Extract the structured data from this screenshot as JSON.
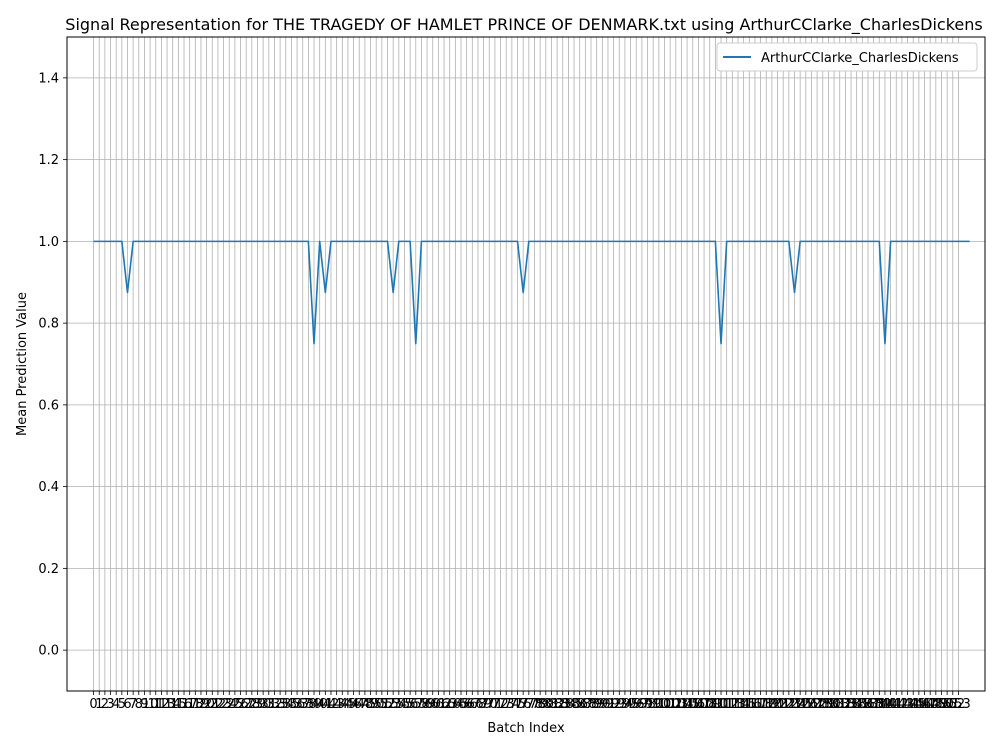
{
  "chart_data": {
    "type": "line",
    "title": "Signal Representation for THE TRAGEDY OF HAMLET PRINCE OF DENMARK.txt using ArthurCClarke_CharlesDickens",
    "xlabel": "Batch Index",
    "ylabel": "Mean Prediction Value",
    "xlim": [
      -4.7,
      157.7
    ],
    "ylim": [
      -0.1,
      1.5
    ],
    "yticks": [
      0.0,
      0.2,
      0.4,
      0.6,
      0.8,
      1.0,
      1.2,
      1.4
    ],
    "x_count": 154,
    "grid": true,
    "legend_position": "top-right",
    "series": [
      {
        "name": "ArthurCClarke_CharlesDickens",
        "color": "#1f77b4",
        "values": [
          1,
          1,
          1,
          1,
          1,
          1,
          0.875,
          1,
          1,
          1,
          1,
          1,
          1,
          1,
          1,
          1,
          1,
          1,
          1,
          1,
          1,
          1,
          1,
          1,
          1,
          1,
          1,
          1,
          1,
          1,
          1,
          1,
          1,
          1,
          1,
          1,
          1,
          1,
          1,
          0.75,
          1,
          0.875,
          1,
          1,
          1,
          1,
          1,
          1,
          1,
          1,
          1,
          1,
          1,
          0.875,
          1,
          1,
          1,
          0.75,
          1,
          1,
          1,
          1,
          1,
          1,
          1,
          1,
          1,
          1,
          1,
          1,
          1,
          1,
          1,
          1,
          1,
          1,
          0.875,
          1,
          1,
          1,
          1,
          1,
          1,
          1,
          1,
          1,
          1,
          1,
          1,
          1,
          1,
          1,
          1,
          1,
          1,
          1,
          1,
          1,
          1,
          1,
          1,
          1,
          1,
          1,
          1,
          1,
          1,
          1,
          1,
          1,
          1,
          0.75,
          1,
          1,
          1,
          1,
          1,
          1,
          1,
          1,
          1,
          1,
          1,
          1,
          0.875,
          1,
          1,
          1,
          1,
          1,
          1,
          1,
          1,
          1,
          1,
          1,
          1,
          1,
          1,
          1,
          0.75,
          1,
          1,
          1,
          1,
          1,
          1,
          1,
          1,
          1,
          1,
          1,
          1,
          1,
          1,
          1
        ]
      }
    ]
  }
}
